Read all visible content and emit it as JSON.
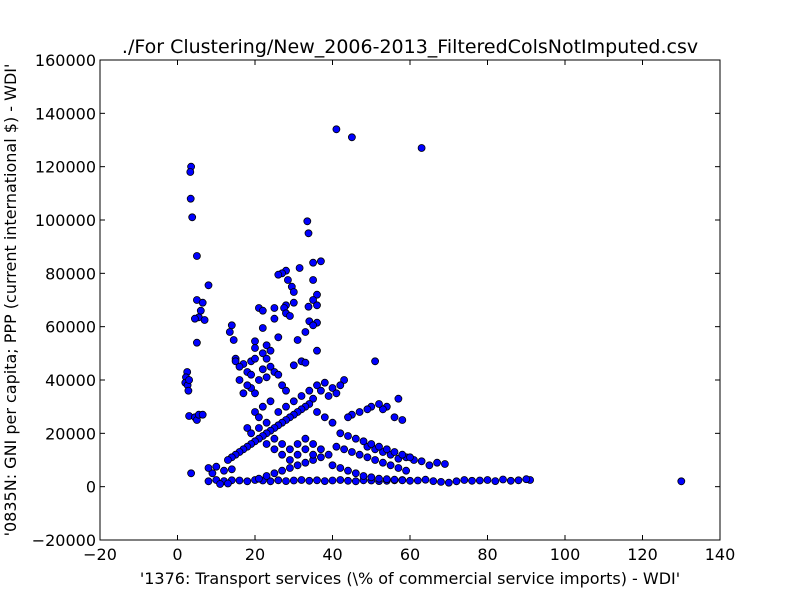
{
  "chart_data": {
    "type": "scatter",
    "title": "./For Clustering/New_2006-2013_FilteredColsNotImputed.csv",
    "xlabel": "'1376: Transport services  (\\% of commercial service imports) - WDI'",
    "ylabel": "'0835N: GNI per capita; PPP  (current international $) - WDI'",
    "xlim": [
      -20,
      140
    ],
    "ylim": [
      -20000,
      160000
    ],
    "xticks": [
      -20,
      0,
      20,
      40,
      60,
      80,
      100,
      120,
      140
    ],
    "yticks": [
      -20000,
      0,
      20000,
      40000,
      60000,
      80000,
      100000,
      120000,
      140000,
      160000
    ],
    "xtick_labels": [
      "−20",
      "0",
      "20",
      "40",
      "60",
      "80",
      "100",
      "120",
      "140"
    ],
    "ytick_labels": [
      "−20000",
      "0",
      "20000",
      "40000",
      "60000",
      "80000",
      "100000",
      "120000",
      "140000",
      "160000"
    ],
    "grid": false,
    "marker_color": "#0000ff",
    "marker_edge_color": "#000000",
    "points": [
      [
        3.5,
        120000
      ],
      [
        3.3,
        118000
      ],
      [
        3.4,
        108000
      ],
      [
        3.8,
        101000
      ],
      [
        5,
        86500
      ],
      [
        8,
        75500
      ],
      [
        5,
        70000
      ],
      [
        6.5,
        69000
      ],
      [
        6,
        66000
      ],
      [
        5.5,
        63500
      ],
      [
        4.5,
        63000
      ],
      [
        7,
        62500
      ],
      [
        2.5,
        43000
      ],
      [
        2.2,
        41000
      ],
      [
        2,
        39000
      ],
      [
        2.6,
        38000
      ],
      [
        3,
        40000
      ],
      [
        2.8,
        36000
      ],
      [
        5,
        54000
      ],
      [
        3,
        26500
      ],
      [
        4.5,
        26000
      ],
      [
        5,
        25000
      ],
      [
        5.5,
        27000
      ],
      [
        6.5,
        27000
      ],
      [
        3.5,
        5000
      ],
      [
        41,
        134000
      ],
      [
        45,
        131000
      ],
      [
        63,
        127000
      ],
      [
        33.5,
        99500
      ],
      [
        33.8,
        95000
      ],
      [
        37,
        84500
      ],
      [
        35,
        84000
      ],
      [
        31.5,
        82000
      ],
      [
        28,
        81000
      ],
      [
        27,
        80000
      ],
      [
        26,
        79500
      ],
      [
        28.5,
        77500
      ],
      [
        35,
        77500
      ],
      [
        29.5,
        75000
      ],
      [
        30,
        73000
      ],
      [
        36,
        72000
      ],
      [
        35,
        70000
      ],
      [
        36,
        68000
      ],
      [
        33.8,
        67500
      ],
      [
        28,
        68000
      ],
      [
        30,
        69000
      ],
      [
        25,
        67000
      ],
      [
        27.5,
        67000
      ],
      [
        21,
        67000
      ],
      [
        22,
        66000
      ],
      [
        28,
        65000
      ],
      [
        29,
        64000
      ],
      [
        25,
        63000
      ],
      [
        34,
        62000
      ],
      [
        36,
        61500
      ],
      [
        35,
        60500
      ],
      [
        14,
        60500
      ],
      [
        13.5,
        58000
      ],
      [
        22,
        59500
      ],
      [
        33,
        58000
      ],
      [
        26,
        56000
      ],
      [
        31,
        55000
      ],
      [
        14.5,
        55000
      ],
      [
        20,
        54500
      ],
      [
        23,
        53000
      ],
      [
        20,
        52000
      ],
      [
        24,
        51000
      ],
      [
        36,
        51000
      ],
      [
        51,
        47000
      ],
      [
        32,
        47000
      ],
      [
        33,
        46500
      ],
      [
        30,
        45500
      ],
      [
        19,
        47000
      ],
      [
        17,
        46000
      ],
      [
        15,
        48000
      ],
      [
        130,
        2000
      ],
      [
        91,
        2500
      ],
      [
        90,
        2800
      ],
      [
        88,
        2400
      ],
      [
        86,
        2200
      ],
      [
        84,
        2700
      ],
      [
        82,
        2100
      ],
      [
        80,
        2500
      ],
      [
        78,
        2300
      ],
      [
        76,
        2200
      ],
      [
        74,
        2500
      ],
      [
        72,
        2000
      ],
      [
        70,
        1500
      ],
      [
        68,
        1800
      ],
      [
        66,
        2100
      ],
      [
        64,
        2600
      ],
      [
        62,
        2300
      ],
      [
        60,
        2200
      ],
      [
        58,
        2500
      ],
      [
        56,
        2400
      ],
      [
        54,
        2200
      ],
      [
        52,
        2100
      ],
      [
        50,
        2300
      ],
      [
        48,
        2400
      ],
      [
        46,
        2000
      ],
      [
        44,
        2200
      ],
      [
        42,
        2500
      ],
      [
        40,
        2300
      ],
      [
        38,
        2100
      ],
      [
        36,
        2400
      ],
      [
        34,
        2200
      ],
      [
        32,
        2500
      ],
      [
        30,
        2300
      ],
      [
        28,
        2100
      ],
      [
        26,
        2400
      ],
      [
        24,
        2000
      ],
      [
        22,
        2300
      ],
      [
        20,
        2500
      ],
      [
        18,
        2000
      ],
      [
        16,
        2300
      ],
      [
        14,
        2400
      ],
      [
        12,
        2100
      ],
      [
        10,
        2500
      ],
      [
        8,
        2000
      ],
      [
        11,
        1000
      ],
      [
        13,
        1200
      ],
      [
        9,
        5000
      ],
      [
        8,
        7000
      ],
      [
        10,
        7500
      ],
      [
        12,
        6000
      ],
      [
        14,
        6500
      ],
      [
        67,
        9000
      ],
      [
        69,
        8500
      ],
      [
        65,
        8000
      ],
      [
        63,
        9500
      ],
      [
        61,
        10000
      ],
      [
        59,
        11000
      ],
      [
        57,
        10500
      ],
      [
        55,
        12000
      ],
      [
        53,
        13000
      ],
      [
        51,
        14000
      ],
      [
        49,
        15000
      ],
      [
        57,
        33000
      ],
      [
        56,
        26000
      ],
      [
        58,
        25000
      ],
      [
        54,
        30000
      ],
      [
        53,
        29000
      ],
      [
        50,
        30000
      ],
      [
        52,
        31000
      ],
      [
        49,
        29000
      ],
      [
        47,
        28000
      ],
      [
        45,
        27000
      ],
      [
        44,
        26000
      ],
      [
        43,
        40000
      ],
      [
        42,
        38000
      ],
      [
        40,
        37000
      ],
      [
        41,
        35000
      ],
      [
        39,
        34000
      ],
      [
        38,
        39000
      ],
      [
        36,
        38000
      ],
      [
        37,
        36000
      ],
      [
        35,
        33000
      ],
      [
        34,
        31000
      ],
      [
        33,
        30000
      ],
      [
        32,
        29000
      ],
      [
        31,
        28000
      ],
      [
        30,
        27000
      ],
      [
        29,
        26000
      ],
      [
        28,
        25000
      ],
      [
        27,
        24000
      ],
      [
        26,
        23000
      ],
      [
        25,
        22000
      ],
      [
        24,
        21000
      ],
      [
        23,
        20000
      ],
      [
        22,
        19000
      ],
      [
        21,
        18000
      ],
      [
        20,
        17000
      ],
      [
        19,
        16000
      ],
      [
        18,
        15000
      ],
      [
        17,
        14000
      ],
      [
        16,
        13000
      ],
      [
        15,
        12000
      ],
      [
        14,
        11000
      ],
      [
        13,
        10000
      ],
      [
        42,
        20000
      ],
      [
        44,
        19000
      ],
      [
        46,
        18000
      ],
      [
        48,
        17000
      ],
      [
        50,
        16000
      ],
      [
        52,
        15000
      ],
      [
        54,
        14000
      ],
      [
        56,
        13000
      ],
      [
        58,
        12000
      ],
      [
        60,
        11000
      ],
      [
        41,
        15000
      ],
      [
        43,
        14000
      ],
      [
        45,
        13000
      ],
      [
        47,
        12000
      ],
      [
        49,
        11000
      ],
      [
        51,
        10000
      ],
      [
        53,
        9000
      ],
      [
        55,
        8000
      ],
      [
        57,
        7000
      ],
      [
        59,
        6000
      ],
      [
        39,
        12000
      ],
      [
        37,
        11000
      ],
      [
        35,
        10000
      ],
      [
        33,
        9000
      ],
      [
        31,
        8000
      ],
      [
        29,
        7000
      ],
      [
        27,
        6000
      ],
      [
        25,
        5000
      ],
      [
        23,
        4000
      ],
      [
        21,
        3000
      ],
      [
        40,
        8000
      ],
      [
        42,
        7000
      ],
      [
        44,
        6000
      ],
      [
        46,
        5000
      ],
      [
        48,
        4000
      ],
      [
        50,
        3500
      ],
      [
        52,
        3000
      ],
      [
        54,
        2800
      ],
      [
        56,
        2600
      ],
      [
        58,
        2400
      ],
      [
        24,
        45000
      ],
      [
        25,
        43000
      ],
      [
        26,
        42000
      ],
      [
        23,
        41000
      ],
      [
        22,
        44000
      ],
      [
        21,
        40000
      ],
      [
        27,
        38000
      ],
      [
        28,
        36000
      ],
      [
        20,
        35000
      ],
      [
        19,
        37000
      ],
      [
        22,
        30000
      ],
      [
        24,
        32000
      ],
      [
        26,
        28000
      ],
      [
        28,
        30000
      ],
      [
        30,
        32000
      ],
      [
        32,
        34000
      ],
      [
        34,
        36000
      ],
      [
        36,
        28000
      ],
      [
        38,
        26000
      ],
      [
        40,
        24000
      ],
      [
        20,
        28000
      ],
      [
        21,
        26000
      ],
      [
        23,
        24000
      ],
      [
        25,
        18000
      ],
      [
        27,
        16000
      ],
      [
        29,
        14000
      ],
      [
        31,
        12000
      ],
      [
        33,
        18000
      ],
      [
        35,
        16000
      ],
      [
        37,
        14000
      ],
      [
        18,
        22000
      ],
      [
        19,
        20000
      ],
      [
        21,
        22000
      ],
      [
        23,
        16000
      ],
      [
        25,
        14000
      ],
      [
        27,
        12000
      ],
      [
        29,
        10000
      ],
      [
        31,
        16000
      ],
      [
        33,
        14000
      ],
      [
        35,
        12000
      ],
      [
        16,
        40000
      ],
      [
        18,
        38000
      ],
      [
        17,
        35000
      ],
      [
        15,
        47000
      ],
      [
        16,
        45000
      ],
      [
        18,
        43000
      ],
      [
        19,
        42000
      ],
      [
        20,
        48000
      ],
      [
        22,
        50000
      ],
      [
        23,
        48000
      ]
    ]
  }
}
